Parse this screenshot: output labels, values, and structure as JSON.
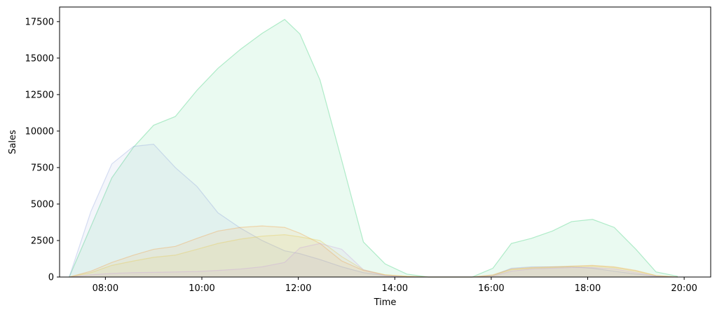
{
  "chart_data": {
    "type": "area",
    "xlabel": "Time",
    "ylabel": "Sales",
    "x_ticks": [
      "08:00",
      "10:00",
      "12:00",
      "14:00",
      "16:00",
      "18:00",
      "20:00"
    ],
    "y_ticks": [
      "0",
      "2500",
      "5000",
      "7500",
      "10000",
      "12500",
      "15000",
      "17500"
    ],
    "xlim": [
      "07:03",
      "20:33"
    ],
    "ylim": [
      0,
      18500
    ],
    "grid": false,
    "legend": "none",
    "series": [
      {
        "color": "#2ecc71",
        "x": [
          "07:15",
          "08:08",
          "08:35",
          "09:00",
          "09:27",
          "09:54",
          "10:20",
          "10:48",
          "11:15",
          "11:43",
          "12:02",
          "12:27",
          "12:54",
          "13:21",
          "13:48",
          "14:15",
          "14:42",
          "15:09",
          "15:36",
          "16:02",
          "16:25",
          "16:50",
          "17:16",
          "17:40",
          "18:06",
          "18:33",
          "19:00",
          "19:25",
          "19:52"
        ],
        "values": [
          0,
          6800,
          8900,
          10400,
          11000,
          12800,
          14300,
          15600,
          16700,
          17650,
          16650,
          13500,
          8000,
          2400,
          900,
          200,
          0,
          0,
          0,
          600,
          2300,
          2650,
          3150,
          3800,
          3950,
          3400,
          1900,
          350,
          50
        ]
      },
      {
        "color": "#8fa3dc",
        "x": [
          "07:15",
          "07:42",
          "08:08",
          "08:35",
          "09:00",
          "09:27",
          "09:54",
          "10:20",
          "10:48",
          "11:15",
          "11:43",
          "12:02",
          "12:27",
          "12:54",
          "13:21",
          "13:48",
          "14:15",
          "14:42",
          "15:09",
          "15:36",
          "16:02",
          "16:25",
          "16:50",
          "17:16",
          "17:40",
          "18:06",
          "18:33",
          "19:00",
          "19:25",
          "19:52"
        ],
        "values": [
          0,
          4500,
          7750,
          8950,
          9100,
          7500,
          6200,
          4400,
          3350,
          2500,
          1800,
          1600,
          1200,
          700,
          300,
          100,
          0,
          0,
          0,
          0,
          100,
          600,
          700,
          700,
          700,
          600,
          400,
          200,
          50,
          0
        ]
      },
      {
        "color": "#f39c3c",
        "x": [
          "07:15",
          "07:42",
          "08:08",
          "08:35",
          "09:00",
          "09:27",
          "09:54",
          "10:20",
          "10:48",
          "11:15",
          "11:43",
          "12:02",
          "12:27",
          "12:54",
          "13:21",
          "13:48",
          "14:15",
          "14:42",
          "15:09",
          "15:36",
          "16:02",
          "16:25",
          "16:50",
          "17:16",
          "17:40",
          "18:06",
          "18:33",
          "19:00",
          "19:25",
          "19:52"
        ],
        "values": [
          0,
          400,
          1000,
          1500,
          1900,
          2100,
          2650,
          3150,
          3400,
          3500,
          3400,
          3000,
          2300,
          1100,
          450,
          150,
          50,
          0,
          0,
          0,
          150,
          550,
          650,
          700,
          750,
          800,
          700,
          450,
          100,
          0
        ]
      },
      {
        "color": "#e6c84a",
        "x": [
          "07:15",
          "07:42",
          "08:08",
          "08:35",
          "09:00",
          "09:27",
          "09:54",
          "10:20",
          "10:48",
          "11:15",
          "11:43",
          "12:02",
          "12:27",
          "12:54",
          "13:21",
          "13:48",
          "14:15",
          "14:42",
          "15:09",
          "15:36",
          "16:02",
          "16:25",
          "16:50",
          "17:16",
          "17:40",
          "18:06",
          "18:33",
          "19:00",
          "19:25",
          "19:52"
        ],
        "values": [
          0,
          300,
          800,
          1100,
          1350,
          1500,
          1900,
          2300,
          2600,
          2800,
          2900,
          2750,
          2500,
          1400,
          500,
          150,
          50,
          0,
          0,
          0,
          100,
          500,
          600,
          650,
          700,
          750,
          650,
          400,
          100,
          0
        ]
      },
      {
        "color": "#c9a0dc",
        "x": [
          "07:15",
          "07:42",
          "08:08",
          "08:35",
          "09:00",
          "09:27",
          "09:54",
          "10:20",
          "10:48",
          "11:15",
          "11:43",
          "12:02",
          "12:27",
          "12:54",
          "13:21",
          "13:48",
          "14:15",
          "14:42",
          "15:09",
          "15:36",
          "16:02",
          "16:25",
          "16:50",
          "17:16",
          "17:40",
          "18:06",
          "18:33",
          "19:00",
          "19:25",
          "19:52"
        ],
        "values": [
          0,
          150,
          250,
          300,
          320,
          350,
          380,
          450,
          550,
          700,
          1000,
          2000,
          2300,
          1900,
          500,
          100,
          0,
          0,
          0,
          0,
          50,
          400,
          550,
          600,
          650,
          650,
          550,
          300,
          50,
          0
        ]
      }
    ]
  }
}
